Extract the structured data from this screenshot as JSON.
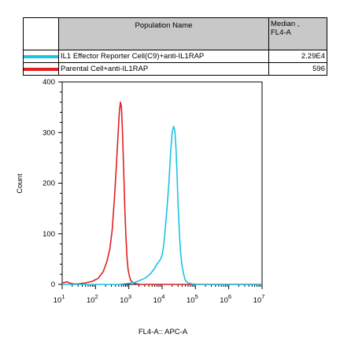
{
  "legend": {
    "header_name": "Population Name",
    "header_median_line1": "Median ,",
    "header_median_line2": "FL4-A",
    "rows": [
      {
        "name": "IL1 Effector Reporter Cell(C9)+anti-IL1RAP",
        "median": "2.29E4",
        "color": "#19c3e6"
      },
      {
        "name": "Parental Cell+anti-IL1RAP",
        "median": "596",
        "color": "#e02020"
      }
    ]
  },
  "chart_data": {
    "type": "line",
    "xlabel": "FL4-A:: APC-A",
    "ylabel": "Count",
    "xscale": "log",
    "xlim": [
      10,
      10000000
    ],
    "ylim": [
      0,
      400
    ],
    "yticks": [
      0,
      100,
      200,
      300,
      400
    ],
    "xticks": [
      {
        "value": 10,
        "base": "10",
        "exp": "1"
      },
      {
        "value": 100,
        "base": "10",
        "exp": "2"
      },
      {
        "value": 1000,
        "base": "10",
        "exp": "3"
      },
      {
        "value": 10000,
        "base": "10",
        "exp": "4"
      },
      {
        "value": 100000,
        "base": "10",
        "exp": "5"
      },
      {
        "value": 1000000,
        "base": "10",
        "exp": "6"
      },
      {
        "value": 10000000,
        "base": "10",
        "exp": "7"
      }
    ],
    "series": [
      {
        "color": "#e02020",
        "x": [
          10,
          14,
          18,
          22,
          30,
          50,
          80,
          120,
          170,
          220,
          270,
          320,
          370,
          420,
          470,
          520,
          560,
          600,
          650,
          700,
          760,
          820,
          880,
          950,
          1050,
          1150,
          1300,
          1500,
          1800,
          2200,
          3000,
          5000,
          10000,
          10000000
        ],
        "y": [
          3,
          5,
          2,
          1,
          1,
          3,
          6,
          12,
          25,
          45,
          70,
          110,
          170,
          230,
          290,
          340,
          360,
          350,
          300,
          230,
          150,
          95,
          55,
          30,
          15,
          8,
          4,
          2,
          1,
          0,
          0,
          0,
          0,
          0
        ]
      },
      {
        "color": "#19c3e6",
        "x": [
          10,
          500,
          1000,
          1500,
          2000,
          3000,
          4000,
          5000,
          6000,
          7000,
          8000,
          9000,
          10000,
          11000,
          12000,
          14000,
          16000,
          18000,
          20000,
          22000,
          24000,
          26000,
          28000,
          30000,
          33000,
          36000,
          40000,
          45000,
          50000,
          60000,
          80000,
          120000,
          200000,
          10000000
        ],
        "y": [
          0,
          0,
          2,
          4,
          7,
          12,
          18,
          25,
          32,
          40,
          45,
          50,
          58,
          75,
          100,
          150,
          200,
          260,
          300,
          312,
          305,
          270,
          220,
          160,
          100,
          60,
          35,
          18,
          8,
          3,
          1,
          0,
          0,
          0
        ]
      }
    ]
  }
}
